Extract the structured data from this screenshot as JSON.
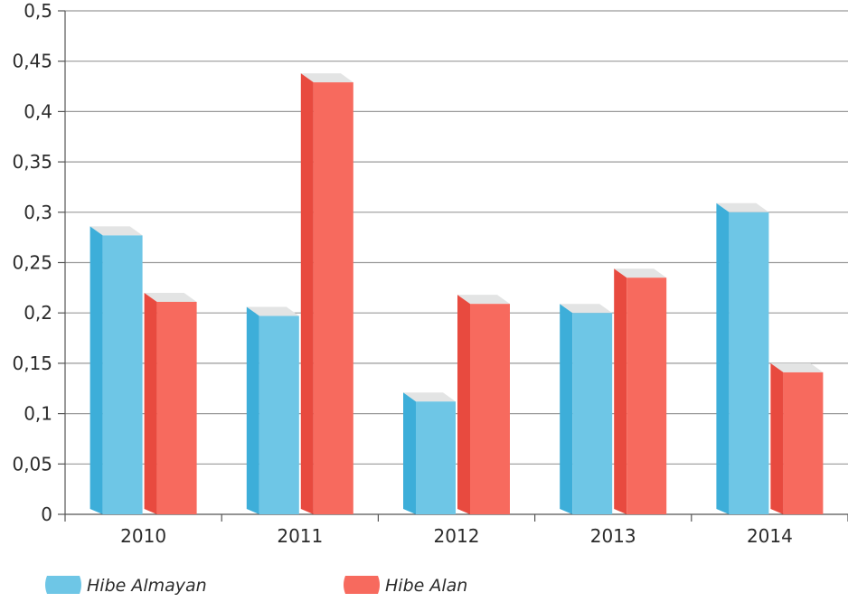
{
  "chart_data": {
    "type": "bar",
    "categories": [
      "2010",
      "2011",
      "2012",
      "2013",
      "2014"
    ],
    "series": [
      {
        "name": "Hibe Almayan",
        "values": [
          0.277,
          0.197,
          0.112,
          0.2,
          0.3
        ],
        "color": "#6ec6e6",
        "side_color": "#3daed9"
      },
      {
        "name": "Hibe Alan",
        "values": [
          0.211,
          0.429,
          0.209,
          0.235,
          0.141
        ],
        "color": "#f76a5e",
        "side_color": "#e84a3f"
      }
    ],
    "ylim": [
      0,
      0.5
    ],
    "yticks": [
      "0",
      "0,05",
      "0,1",
      "0,15",
      "0,2",
      "0,25",
      "0,3",
      "0,35",
      "0,4",
      "0,45",
      "0,5"
    ],
    "title": "",
    "xlabel": "",
    "ylabel": "",
    "grid": true,
    "legend_position": "bottom-left",
    "top_face_color": "#e3e4e4"
  }
}
